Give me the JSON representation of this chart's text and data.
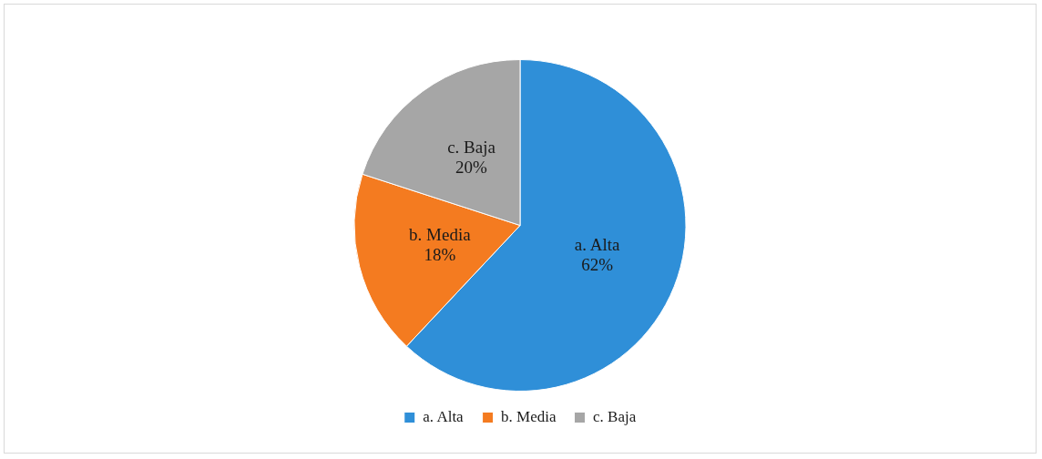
{
  "chart_data": {
    "type": "pie",
    "categories": [
      "a. Alta",
      "b. Media",
      "c. Baja"
    ],
    "values": [
      62,
      18,
      20
    ],
    "colors": [
      "#2f8fd8",
      "#f47b20",
      "#a6a6a6"
    ],
    "value_labels": [
      "62%",
      "18%",
      "20%"
    ],
    "legend": "bottom"
  }
}
